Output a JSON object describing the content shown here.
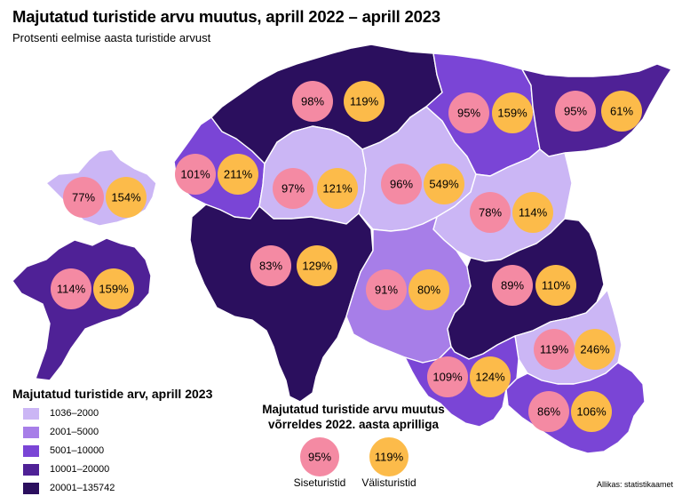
{
  "title": "Majutatud turistide arvu muutus, aprill 2022 – aprill 2023",
  "subtitle": "Protsenti eelmise aasta turistide arvust",
  "colors": {
    "class1": "#cbb6f5",
    "class2": "#a77ee8",
    "class3": "#7a45d6",
    "class4": "#4f2196",
    "class5": "#2b0f5e",
    "domestic": "#f48aa3",
    "foreign": "#fcbb4a"
  },
  "legend": {
    "title": "Majutatud turistide arv, aprill 2023",
    "classes": [
      "1036–2000",
      "2001–5000",
      "5001–10000",
      "10001–20000",
      "20001–135742"
    ]
  },
  "change_legend": {
    "title_line1": "Majutatud turistide arvu muutus",
    "title_line2": "võrreldes 2022. aasta aprilliga",
    "domestic_example": "95%",
    "foreign_example": "119%",
    "domestic_label": "Siseturistid",
    "foreign_label": "Välisturistid"
  },
  "source": "Allikas: statistikaamet",
  "counties": [
    {
      "id": "hiiumaa",
      "class": 1,
      "domestic": "77%",
      "foreign": "154%"
    },
    {
      "id": "saaremaa",
      "class": 4,
      "domestic": "114%",
      "foreign": "159%"
    },
    {
      "id": "laanemaa",
      "class": 3,
      "domestic": "101%",
      "foreign": "211%"
    },
    {
      "id": "harjumaa",
      "class": 5,
      "domestic": "98%",
      "foreign": "119%"
    },
    {
      "id": "raplamaa",
      "class": 1,
      "domestic": "97%",
      "foreign": "121%"
    },
    {
      "id": "parnumaa",
      "class": 5,
      "domestic": "83%",
      "foreign": "129%"
    },
    {
      "id": "jarvamaa",
      "class": 1,
      "domestic": "96%",
      "foreign": "549%"
    },
    {
      "id": "laane-virumaa",
      "class": 3,
      "domestic": "95%",
      "foreign": "159%"
    },
    {
      "id": "ida-virumaa",
      "class": 4,
      "domestic": "95%",
      "foreign": "61%"
    },
    {
      "id": "jogevamaa",
      "class": 1,
      "domestic": "78%",
      "foreign": "114%"
    },
    {
      "id": "viljandimaa",
      "class": 2,
      "domestic": "91%",
      "foreign": "80%"
    },
    {
      "id": "tartumaa",
      "class": 5,
      "domestic": "89%",
      "foreign": "110%"
    },
    {
      "id": "polvamaa",
      "class": 1,
      "domestic": "119%",
      "foreign": "246%"
    },
    {
      "id": "valgamaa",
      "class": 3,
      "domestic": "109%",
      "foreign": "124%"
    },
    {
      "id": "vorumaa",
      "class": 3,
      "domestic": "86%",
      "foreign": "106%"
    }
  ]
}
